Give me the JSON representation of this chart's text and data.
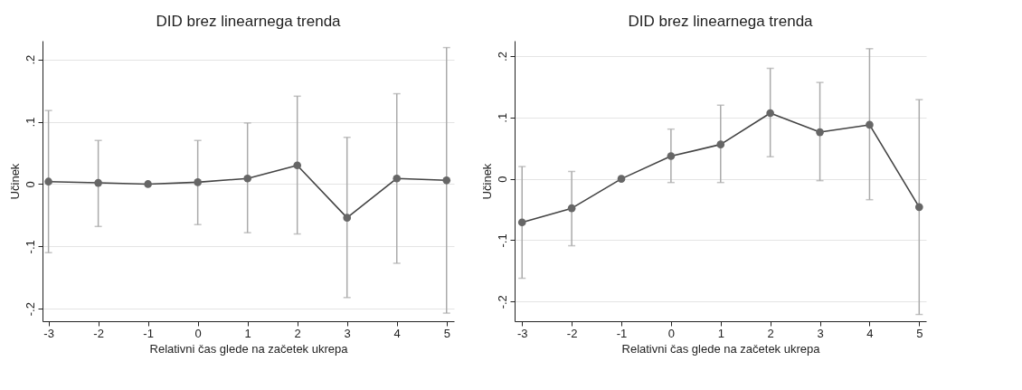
{
  "chart_data": [
    {
      "type": "line",
      "title": "DID brez linearnega trenda",
      "xlabel": "Relativni čas glede na začetek ukrepa",
      "ylabel": "Učinek",
      "x": [
        -3,
        -2,
        -1,
        0,
        1,
        2,
        3,
        4,
        5
      ],
      "series": [
        {
          "color": "#444444",
          "values": [
            0.004,
            0.002,
            0,
            0.003,
            0.009,
            0.03,
            -0.054,
            0.009,
            0.006
          ],
          "errors": [
            [
              -0.11,
              0.118
            ],
            [
              -0.068,
              0.07
            ],
            null,
            [
              -0.065,
              0.07
            ],
            [
              -0.078,
              0.098
            ],
            [
              -0.08,
              0.141
            ],
            [
              -0.182,
              0.075
            ],
            [
              -0.127,
              0.145
            ],
            [
              -0.207,
              0.219
            ]
          ]
        }
      ],
      "xlim": [
        -3.12,
        5.15
      ],
      "ylim": [
        -0.22,
        0.23
      ],
      "xticks": [
        -3,
        -2,
        -1,
        0,
        1,
        2,
        3,
        4,
        5
      ],
      "yticks": [
        {
          "value": -0.2,
          "label": "-.2"
        },
        {
          "value": -0.1,
          "label": "-.1"
        },
        0,
        {
          "value": 0.1,
          "label": ".1"
        },
        {
          "value": 0.2,
          "label": ".2"
        }
      ],
      "grid": "y",
      "marker": "circle",
      "line_style": "solid"
    },
    {
      "type": "line",
      "title": "DID brez linearnega trenda",
      "xlabel": "Relativni čas glede na začetek ukrepa",
      "ylabel": "Učinek",
      "x": [
        -3,
        -2,
        -1,
        0,
        1,
        2,
        3,
        4,
        5
      ],
      "series": [
        {
          "color": "#444444",
          "values": [
            -0.071,
            -0.048,
            0,
            0.037,
            0.056,
            0.107,
            0.076,
            0.088,
            -0.046
          ],
          "errors": [
            [
              -0.162,
              0.02
            ],
            [
              -0.109,
              0.012
            ],
            null,
            [
              -0.006,
              0.081
            ],
            [
              -0.006,
              0.12
            ],
            [
              0.036,
              0.18
            ],
            [
              -0.003,
              0.157
            ],
            [
              -0.034,
              0.212
            ],
            [
              -0.221,
              0.129
            ]
          ]
        }
      ],
      "xlim": [
        -3.15,
        5.14
      ],
      "ylim": [
        -0.232,
        0.225
      ],
      "xticks": [
        -3,
        -2,
        -1,
        0,
        1,
        2,
        3,
        4,
        5
      ],
      "yticks": [
        {
          "value": -0.2,
          "label": "-.2"
        },
        {
          "value": -0.1,
          "label": "-.1"
        },
        0,
        {
          "value": 0.1,
          "label": ".1"
        },
        {
          "value": 0.2,
          "label": ".2"
        }
      ],
      "grid": "y",
      "marker": "circle",
      "line_style": "solid"
    }
  ]
}
